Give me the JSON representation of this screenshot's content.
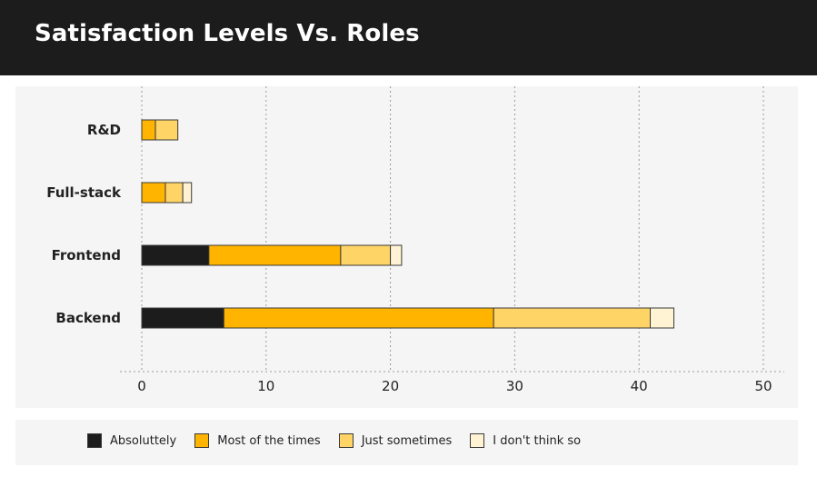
{
  "header": {
    "title": "Satisfaction Levels Vs. Roles"
  },
  "colors": {
    "header_bg": "#1c1c1c",
    "panel_bg": "#f5f5f5",
    "absolutely": "#1c1c1c",
    "most": "#ffb400",
    "sometimes": "#ffd466",
    "dont_think": "#fff3d4",
    "bar_border": "#3a3a3a",
    "grid": "#9a9a9a"
  },
  "chart_data": {
    "type": "bar",
    "orientation": "horizontal",
    "stacked": true,
    "title": "Satisfaction Levels Vs. Roles",
    "xlabel": "",
    "ylabel": "",
    "xlim": [
      0,
      50
    ],
    "xticks": [
      0,
      10,
      20,
      30,
      40,
      50
    ],
    "grid": true,
    "legend_position": "bottom",
    "categories": [
      "R&D",
      "Full-stack",
      "Frontend",
      "Backend"
    ],
    "series": [
      {
        "name": "Absoluttely",
        "color": "#1c1c1c",
        "values": [
          0,
          0,
          5.4,
          6.6
        ]
      },
      {
        "name": "Most of the times",
        "color": "#ffb400",
        "values": [
          1.1,
          1.9,
          10.6,
          21.7
        ]
      },
      {
        "name": "Just sometimes",
        "color": "#ffd466",
        "values": [
          1.8,
          1.4,
          4.0,
          12.6
        ]
      },
      {
        "name": "I don't think so",
        "color": "#fff3d4",
        "values": [
          0,
          0.7,
          0.9,
          1.9
        ]
      }
    ]
  }
}
